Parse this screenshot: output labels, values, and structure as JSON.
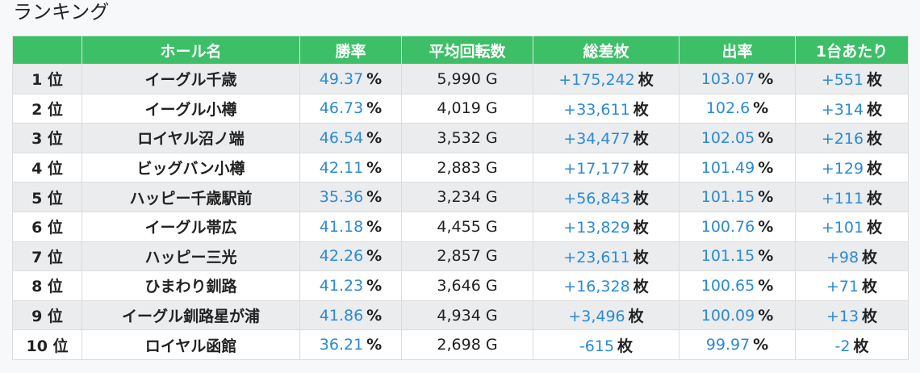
{
  "title": "ランキング",
  "table": {
    "columns": [
      "ホール名",
      "勝率",
      "平均回転数",
      "総差枚",
      "出率",
      "1台あたり"
    ],
    "rows": [
      {
        "rank": "1 位",
        "hall": "イーグル千歳",
        "win_rate": {
          "value": "49.37",
          "unit": "%"
        },
        "spins": "5,990 G",
        "diff": {
          "value": "+175,242",
          "unit": "枚"
        },
        "payout": {
          "value": "103.07",
          "unit": "%"
        },
        "per_machine": {
          "value": "+551",
          "unit": "枚"
        }
      },
      {
        "rank": "2 位",
        "hall": "イーグル小樽",
        "win_rate": {
          "value": "46.73",
          "unit": "%"
        },
        "spins": "4,019 G",
        "diff": {
          "value": "+33,611",
          "unit": "枚"
        },
        "payout": {
          "value": "102.6",
          "unit": "%"
        },
        "per_machine": {
          "value": "+314",
          "unit": "枚"
        }
      },
      {
        "rank": "3 位",
        "hall": "ロイヤル沼ノ端",
        "win_rate": {
          "value": "46.54",
          "unit": "%"
        },
        "spins": "3,532 G",
        "diff": {
          "value": "+34,477",
          "unit": "枚"
        },
        "payout": {
          "value": "102.05",
          "unit": "%"
        },
        "per_machine": {
          "value": "+216",
          "unit": "枚"
        }
      },
      {
        "rank": "4 位",
        "hall": "ビッグバン小樽",
        "win_rate": {
          "value": "42.11",
          "unit": "%"
        },
        "spins": "2,883 G",
        "diff": {
          "value": "+17,177",
          "unit": "枚"
        },
        "payout": {
          "value": "101.49",
          "unit": "%"
        },
        "per_machine": {
          "value": "+129",
          "unit": "枚"
        }
      },
      {
        "rank": "5 位",
        "hall": "ハッピー千歳駅前",
        "win_rate": {
          "value": "35.36",
          "unit": "%"
        },
        "spins": "3,234 G",
        "diff": {
          "value": "+56,843",
          "unit": "枚"
        },
        "payout": {
          "value": "101.15",
          "unit": "%"
        },
        "per_machine": {
          "value": "+111",
          "unit": "枚"
        }
      },
      {
        "rank": "6 位",
        "hall": "イーグル帯広",
        "win_rate": {
          "value": "41.18",
          "unit": "%"
        },
        "spins": "4,455 G",
        "diff": {
          "value": "+13,829",
          "unit": "枚"
        },
        "payout": {
          "value": "100.76",
          "unit": "%"
        },
        "per_machine": {
          "value": "+101",
          "unit": "枚"
        }
      },
      {
        "rank": "7 位",
        "hall": "ハッピー三光",
        "win_rate": {
          "value": "42.26",
          "unit": "%"
        },
        "spins": "2,857 G",
        "diff": {
          "value": "+23,611",
          "unit": "枚"
        },
        "payout": {
          "value": "101.15",
          "unit": "%"
        },
        "per_machine": {
          "value": "+98",
          "unit": "枚"
        }
      },
      {
        "rank": "8 位",
        "hall": "ひまわり釧路",
        "win_rate": {
          "value": "41.23",
          "unit": "%"
        },
        "spins": "3,646 G",
        "diff": {
          "value": "+16,328",
          "unit": "枚"
        },
        "payout": {
          "value": "100.65",
          "unit": "%"
        },
        "per_machine": {
          "value": "+71",
          "unit": "枚"
        }
      },
      {
        "rank": "9 位",
        "hall": "イーグル釧路星が浦",
        "win_rate": {
          "value": "41.86",
          "unit": "%"
        },
        "spins": "4,934 G",
        "diff": {
          "value": "+3,496",
          "unit": "枚"
        },
        "payout": {
          "value": "100.09",
          "unit": "%"
        },
        "per_machine": {
          "value": "+13",
          "unit": "枚"
        }
      },
      {
        "rank": "10 位",
        "hall": "ロイヤル函館",
        "win_rate": {
          "value": "36.21",
          "unit": "%"
        },
        "spins": "2,698 G",
        "diff": {
          "value": "-615",
          "unit": "枚"
        },
        "payout": {
          "value": "99.97",
          "unit": "%"
        },
        "per_machine": {
          "value": "-2",
          "unit": "枚"
        }
      }
    ]
  }
}
